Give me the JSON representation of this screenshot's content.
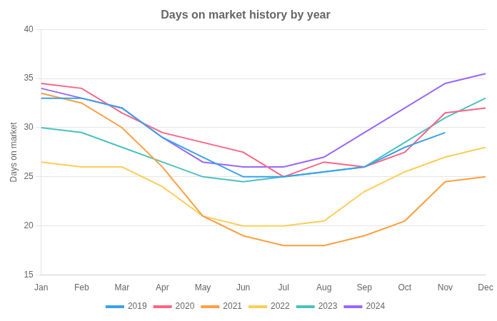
{
  "chart_data": {
    "type": "line",
    "title": "Days on market history by year",
    "ylabel": "Days on market",
    "categories": [
      "Jan",
      "Feb",
      "Mar",
      "Apr",
      "May",
      "Jun",
      "Jul",
      "Aug",
      "Sep",
      "Oct",
      "Nov",
      "Dec"
    ],
    "series": [
      {
        "name": "2019",
        "values": [
          33.0,
          33.0,
          32.0,
          29.0,
          27.0,
          25.0,
          25.0,
          25.5,
          26.0,
          28.0,
          29.5,
          null
        ]
      },
      {
        "name": "2020",
        "values": [
          34.5,
          34.0,
          31.5,
          29.5,
          28.5,
          27.5,
          25.0,
          26.5,
          26.0,
          27.5,
          31.5,
          32.0
        ]
      },
      {
        "name": "2021",
        "values": [
          33.5,
          32.5,
          30.0,
          26.0,
          21.0,
          19.0,
          18.0,
          18.0,
          19.0,
          20.5,
          24.5,
          25.0
        ]
      },
      {
        "name": "2022",
        "values": [
          26.5,
          26.0,
          26.0,
          24.0,
          21.0,
          20.0,
          20.0,
          20.5,
          23.5,
          25.5,
          27.0,
          28.0
        ]
      },
      {
        "name": "2023",
        "values": [
          30.0,
          29.5,
          28.0,
          26.5,
          25.0,
          24.5,
          25.0,
          25.5,
          26.0,
          28.5,
          31.0,
          33.0
        ]
      },
      {
        "name": "2024",
        "values": [
          34.0,
          33.0,
          32.0,
          29.0,
          26.5,
          26.0,
          26.0,
          27.0,
          29.5,
          32.0,
          34.5,
          35.5
        ]
      }
    ],
    "ylim": [
      15,
      40
    ],
    "yticks": [
      15,
      20,
      25,
      30,
      35,
      40
    ],
    "grid": true,
    "legend": "bottom"
  }
}
